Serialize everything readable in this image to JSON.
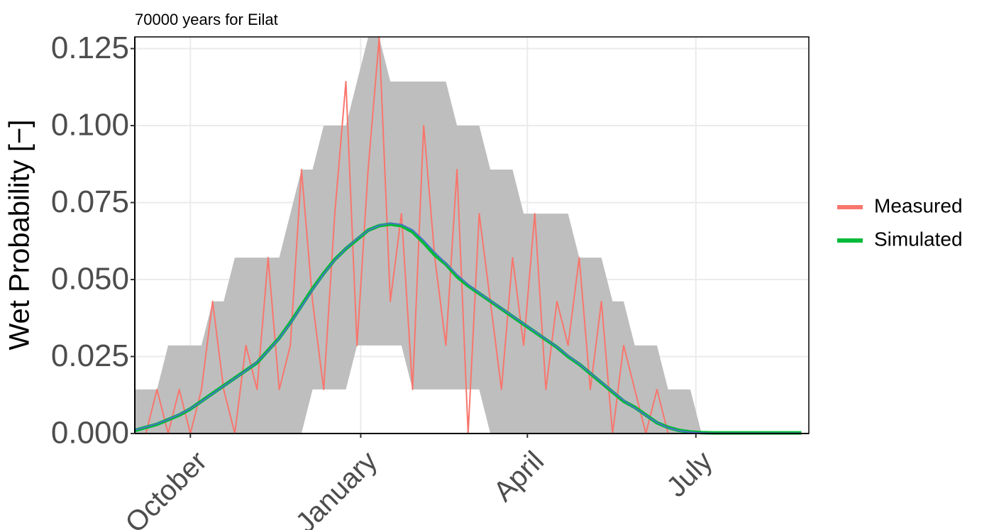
{
  "chart_data": {
    "type": "line",
    "title": "70000 years for Eilat",
    "y_label": "Wet Probability [−]",
    "x": [
      0,
      6,
      12,
      18,
      24,
      30,
      36,
      42,
      48,
      54,
      60,
      66,
      72,
      78,
      84,
      90,
      96,
      102,
      108,
      114,
      120,
      126,
      132,
      138,
      144,
      150,
      156,
      162,
      168,
      174,
      180,
      186,
      192,
      198,
      204,
      210,
      216,
      222,
      228,
      234,
      240,
      246,
      252,
      258,
      264,
      270,
      276,
      282,
      288,
      294,
      300,
      306,
      312,
      318,
      324,
      330,
      336,
      342,
      348,
      354,
      360
    ],
    "xlim": [
      0,
      364
    ],
    "xticks": [
      {
        "value": 30,
        "label": "October"
      },
      {
        "value": 122,
        "label": "January"
      },
      {
        "value": 212,
        "label": "April"
      },
      {
        "value": 303,
        "label": "July"
      }
    ],
    "ylim": [
      0,
      0.1288
    ],
    "yticks": [
      {
        "value": 0,
        "label": "0.000"
      },
      0.025,
      {
        "value": 0.05,
        "label": "0.050"
      },
      0.075,
      {
        "value": 0.1,
        "label": "0.100"
      },
      0.125
    ],
    "grid": true,
    "legend": "right",
    "band": {
      "color": "#bebebe",
      "upper": [
        0.0143,
        0.0143,
        0.0143,
        0.0286,
        0.0286,
        0.0286,
        0.0286,
        0.0429,
        0.0429,
        0.0571,
        0.0571,
        0.0571,
        0.0571,
        0.0571,
        0.0714,
        0.0857,
        0.0857,
        0.1,
        0.1,
        0.1,
        0.1143,
        0.1286,
        0.1286,
        0.1143,
        0.1143,
        0.1143,
        0.1143,
        0.1143,
        0.1143,
        0.1,
        0.1,
        0.1,
        0.0857,
        0.0857,
        0.0857,
        0.0714,
        0.0714,
        0.0714,
        0.0714,
        0.0714,
        0.0571,
        0.0571,
        0.0571,
        0.0429,
        0.0429,
        0.0286,
        0.0286,
        0.0286,
        0.0143,
        0.0143,
        0.0143,
        0.0002,
        0.0002,
        0.0002,
        0.0002,
        0.0002,
        0.0002,
        0.0002,
        0.0002,
        0.0002,
        0.0002
      ],
      "lower": [
        0,
        0,
        0,
        0,
        0,
        0,
        0,
        0,
        0,
        0,
        0,
        0,
        0,
        0,
        0,
        0,
        0.0143,
        0.0143,
        0.0143,
        0.0143,
        0.0286,
        0.0286,
        0.0286,
        0.0286,
        0.0286,
        0.0143,
        0.0143,
        0.0143,
        0.0143,
        0.0143,
        0.0143,
        0.0143,
        0,
        0,
        0,
        0,
        0,
        0,
        0,
        0,
        0,
        0,
        0,
        0,
        0,
        0,
        0,
        0,
        0,
        0,
        0,
        0,
        0,
        0,
        0,
        0,
        0,
        0,
        0,
        0,
        0
      ]
    },
    "series": [
      {
        "name": "Measured",
        "color": "#f8766d",
        "values": [
          0,
          0,
          0.0143,
          0,
          0.0143,
          0,
          0.0143,
          0.0429,
          0.0143,
          0,
          0.0286,
          0.0143,
          0.0571,
          0.0143,
          0.0286,
          0.0857,
          0.0429,
          0.0143,
          0.0714,
          0.1143,
          0.0286,
          0.0857,
          0.1286,
          0.0429,
          0.0714,
          0.0143,
          0.1,
          0.0571,
          0.0286,
          0.0857,
          0,
          0.0714,
          0.0429,
          0.0143,
          0.0571,
          0.0286,
          0.0714,
          0.0143,
          0.0429,
          0.0286,
          0.0571,
          0.0143,
          0.0429,
          0,
          0.0286,
          0.0143,
          0,
          0.0143,
          0,
          0,
          0,
          0,
          0,
          0,
          0,
          0,
          0,
          0,
          0,
          0,
          0
        ]
      },
      {
        "name": "Simulated",
        "color": "#00ba38",
        "values": [
          0.001,
          0.002,
          0.003,
          0.0045,
          0.006,
          0.008,
          0.0105,
          0.013,
          0.0155,
          0.018,
          0.0205,
          0.023,
          0.027,
          0.031,
          0.036,
          0.0415,
          0.047,
          0.052,
          0.0565,
          0.06,
          0.063,
          0.066,
          0.0675,
          0.068,
          0.0675,
          0.0655,
          0.062,
          0.058,
          0.055,
          0.051,
          0.048,
          0.0455,
          0.043,
          0.0405,
          0.038,
          0.0355,
          0.033,
          0.0305,
          0.028,
          0.025,
          0.0225,
          0.0195,
          0.0165,
          0.0135,
          0.0105,
          0.0085,
          0.006,
          0.0035,
          0.002,
          0.001,
          0.0005,
          0.0003,
          0.0002,
          0.0002,
          0.0002,
          0.0002,
          0.0002,
          0.0002,
          0.0002,
          0.0002,
          0.0002
        ]
      }
    ],
    "fit": {
      "color": "#4a74c9",
      "values": [
        0.0012,
        0.0021,
        0.0032,
        0.0046,
        0.0062,
        0.0081,
        0.0104,
        0.0129,
        0.0154,
        0.0179,
        0.0204,
        0.0232,
        0.0268,
        0.0309,
        0.0357,
        0.0412,
        0.0466,
        0.0518,
        0.0563,
        0.0601,
        0.0633,
        0.0659,
        0.0676,
        0.0683,
        0.0679,
        0.0661,
        0.0627,
        0.0588,
        0.0553,
        0.0516,
        0.0484,
        0.0457,
        0.0432,
        0.0407,
        0.0382,
        0.0357,
        0.0332,
        0.0307,
        0.0281,
        0.0253,
        0.0226,
        0.0197,
        0.0167,
        0.0137,
        0.0108,
        0.0083,
        0.0059,
        0.0036,
        0.0019,
        0.0009,
        0.0004,
        0.0002,
        0.0001,
        0.0001,
        0.0001,
        0.0001,
        0.0001,
        0.0001,
        0.0001,
        0.0001,
        0.0001
      ]
    }
  }
}
